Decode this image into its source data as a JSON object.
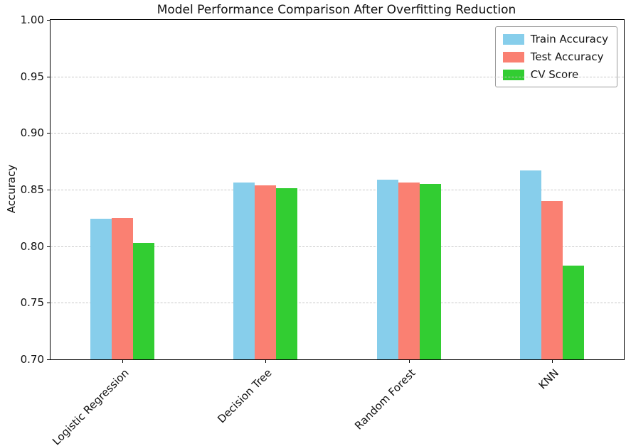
{
  "chart_data": {
    "type": "bar",
    "title": "Model Performance Comparison After Overfitting Reduction",
    "xlabel": "",
    "ylabel": "Accuracy",
    "ylim": [
      0.7,
      1.0
    ],
    "yticks": [
      0.7,
      0.75,
      0.8,
      0.85,
      0.9,
      0.95,
      1.0
    ],
    "grid": "y-dashed",
    "legend_position": "upper-right",
    "categories": [
      "Logistic Regression",
      "Decision Tree",
      "Random Forest",
      "KNN"
    ],
    "series": [
      {
        "name": "Train Accuracy",
        "color": "#87CEEB",
        "values": [
          0.824,
          0.856,
          0.859,
          0.867
        ]
      },
      {
        "name": "Test Accuracy",
        "color": "#FA8072",
        "values": [
          0.825,
          0.854,
          0.856,
          0.84
        ]
      },
      {
        "name": "CV Score",
        "color": "#32CD32",
        "values": [
          0.803,
          0.851,
          0.855,
          0.783
        ]
      }
    ]
  }
}
